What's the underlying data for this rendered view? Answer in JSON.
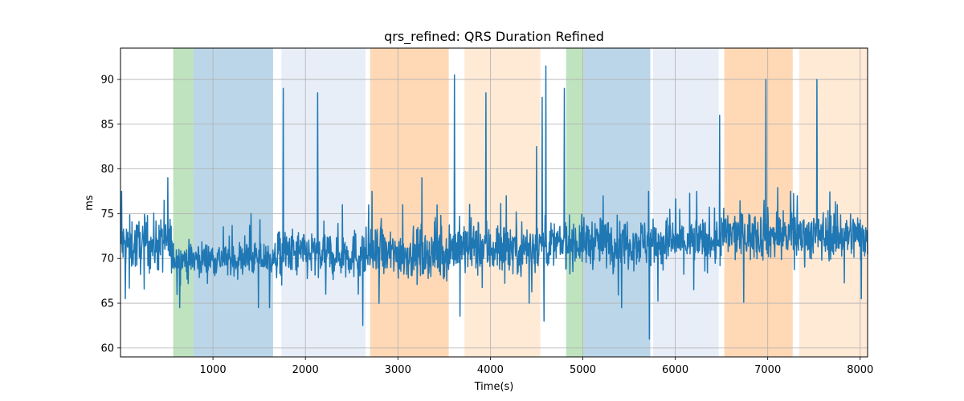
{
  "chart_data": {
    "type": "line",
    "title": "qrs_refined: QRS Duration Refined",
    "xlabel": "Time(s)",
    "ylabel": "ms",
    "xlim": [
      0,
      8080
    ],
    "ylim": [
      59,
      93.5
    ],
    "xticks": [
      1000,
      2000,
      3000,
      4000,
      5000,
      6000,
      7000,
      8000
    ],
    "yticks": [
      60,
      65,
      70,
      75,
      80,
      85,
      90
    ],
    "grid": true,
    "colors": {
      "line": "#1f77b4",
      "green": "#2ca02c",
      "blue": "#1f77b4",
      "lightblue": "#aec7e8",
      "orange": "#ff7f0e",
      "lightorange": "#ffbb78"
    },
    "shaded_regions": [
      {
        "x0": 570,
        "x1": 790,
        "color": "green"
      },
      {
        "x0": 790,
        "x1": 1650,
        "color": "blue"
      },
      {
        "x0": 1740,
        "x1": 2650,
        "color": "lightblue"
      },
      {
        "x0": 2700,
        "x1": 3550,
        "color": "orange"
      },
      {
        "x0": 3720,
        "x1": 4540,
        "color": "lightorange"
      },
      {
        "x0": 4820,
        "x1": 5010,
        "color": "green"
      },
      {
        "x0": 5010,
        "x1": 5730,
        "color": "blue"
      },
      {
        "x0": 5760,
        "x1": 6470,
        "color": "lightblue"
      },
      {
        "x0": 6530,
        "x1": 7270,
        "color": "orange"
      },
      {
        "x0": 7340,
        "x1": 8080,
        "color": "lightorange"
      }
    ],
    "series": [
      {
        "segments": [
          {
            "x0": 0,
            "x1": 560,
            "mean": 71.5,
            "spread": 2.5
          },
          {
            "x0": 560,
            "x1": 1700,
            "mean": 70.0,
            "spread": 1.6
          },
          {
            "x0": 1700,
            "x1": 3550,
            "mean": 70.5,
            "spread": 2.3
          },
          {
            "x0": 3550,
            "x1": 4450,
            "mean": 71.2,
            "spread": 2.6
          },
          {
            "x0": 4450,
            "x1": 4820,
            "mean": 71.5,
            "spread": 2.2
          },
          {
            "x0": 4820,
            "x1": 6500,
            "mean": 71.8,
            "spread": 2.3
          },
          {
            "x0": 6500,
            "x1": 8080,
            "mean": 72.6,
            "spread": 2.3
          }
        ],
        "spikes": [
          {
            "x": 10,
            "y": 77.5
          },
          {
            "x": 50,
            "y": 65.5
          },
          {
            "x": 290,
            "y": 74.8
          },
          {
            "x": 470,
            "y": 76.5
          },
          {
            "x": 510,
            "y": 79.0
          },
          {
            "x": 640,
            "y": 64.5
          },
          {
            "x": 1410,
            "y": 75.0
          },
          {
            "x": 1490,
            "y": 64.5
          },
          {
            "x": 1610,
            "y": 64.5
          },
          {
            "x": 1760,
            "y": 89.0
          },
          {
            "x": 2130,
            "y": 88.5
          },
          {
            "x": 2220,
            "y": 66.0
          },
          {
            "x": 2400,
            "y": 76.0
          },
          {
            "x": 2570,
            "y": 66.0
          },
          {
            "x": 2620,
            "y": 62.5
          },
          {
            "x": 2720,
            "y": 77.5
          },
          {
            "x": 3050,
            "y": 76.0
          },
          {
            "x": 3260,
            "y": 79.0
          },
          {
            "x": 3610,
            "y": 90.5
          },
          {
            "x": 3950,
            "y": 88.5
          },
          {
            "x": 4170,
            "y": 77.0
          },
          {
            "x": 4420,
            "y": 65.0
          },
          {
            "x": 4500,
            "y": 82.5
          },
          {
            "x": 4560,
            "y": 88.0
          },
          {
            "x": 4580,
            "y": 63.0
          },
          {
            "x": 4600,
            "y": 91.5
          },
          {
            "x": 4800,
            "y": 89.0
          },
          {
            "x": 5220,
            "y": 77.0
          },
          {
            "x": 5420,
            "y": 64.5
          },
          {
            "x": 5710,
            "y": 77.5
          },
          {
            "x": 5720,
            "y": 61.0
          },
          {
            "x": 5940,
            "y": 75.5
          },
          {
            "x": 6200,
            "y": 66.5
          },
          {
            "x": 6230,
            "y": 77.5
          },
          {
            "x": 6480,
            "y": 86.0
          },
          {
            "x": 6960,
            "y": 76.5
          },
          {
            "x": 6980,
            "y": 90.0
          },
          {
            "x": 7320,
            "y": 77.0
          },
          {
            "x": 7530,
            "y": 90.0
          },
          {
            "x": 7750,
            "y": 76.0
          },
          {
            "x": 8010,
            "y": 65.5
          }
        ]
      }
    ]
  }
}
